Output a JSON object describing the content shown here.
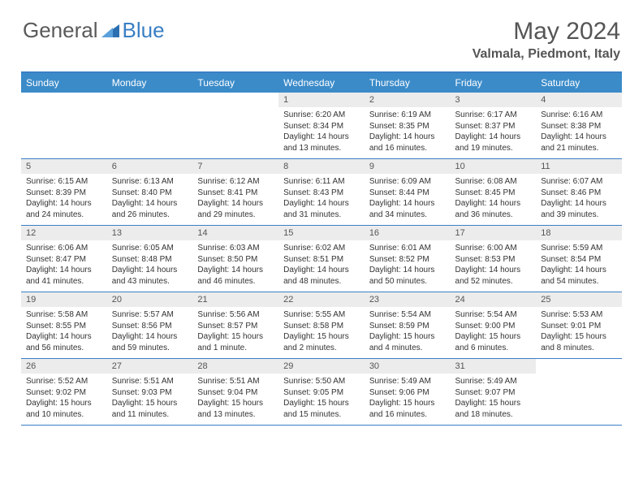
{
  "logo": {
    "text1": "General",
    "text2": "Blue"
  },
  "title": "May 2024",
  "location": "Valmala, Piedmont, Italy",
  "colors": {
    "header_bg": "#3b8bc9",
    "header_text": "#ffffff",
    "accent_rule": "#3a7fc4",
    "daynum_bg": "#ececec",
    "body_text": "#333333",
    "title_text": "#555555"
  },
  "typography": {
    "title_fontsize": 30,
    "location_fontsize": 16,
    "weekday_fontsize": 12,
    "daynum_fontsize": 11,
    "cell_fontsize": 10
  },
  "layout": {
    "columns": 7,
    "rows": 5,
    "leading_blanks": 3,
    "trailing_blanks": 1
  },
  "weekdays": [
    "Sunday",
    "Monday",
    "Tuesday",
    "Wednesday",
    "Thursday",
    "Friday",
    "Saturday"
  ],
  "days": [
    {
      "n": 1,
      "sunrise": "6:20 AM",
      "sunset": "8:34 PM",
      "daylight": "14 hours and 13 minutes."
    },
    {
      "n": 2,
      "sunrise": "6:19 AM",
      "sunset": "8:35 PM",
      "daylight": "14 hours and 16 minutes."
    },
    {
      "n": 3,
      "sunrise": "6:17 AM",
      "sunset": "8:37 PM",
      "daylight": "14 hours and 19 minutes."
    },
    {
      "n": 4,
      "sunrise": "6:16 AM",
      "sunset": "8:38 PM",
      "daylight": "14 hours and 21 minutes."
    },
    {
      "n": 5,
      "sunrise": "6:15 AM",
      "sunset": "8:39 PM",
      "daylight": "14 hours and 24 minutes."
    },
    {
      "n": 6,
      "sunrise": "6:13 AM",
      "sunset": "8:40 PM",
      "daylight": "14 hours and 26 minutes."
    },
    {
      "n": 7,
      "sunrise": "6:12 AM",
      "sunset": "8:41 PM",
      "daylight": "14 hours and 29 minutes."
    },
    {
      "n": 8,
      "sunrise": "6:11 AM",
      "sunset": "8:43 PM",
      "daylight": "14 hours and 31 minutes."
    },
    {
      "n": 9,
      "sunrise": "6:09 AM",
      "sunset": "8:44 PM",
      "daylight": "14 hours and 34 minutes."
    },
    {
      "n": 10,
      "sunrise": "6:08 AM",
      "sunset": "8:45 PM",
      "daylight": "14 hours and 36 minutes."
    },
    {
      "n": 11,
      "sunrise": "6:07 AM",
      "sunset": "8:46 PM",
      "daylight": "14 hours and 39 minutes."
    },
    {
      "n": 12,
      "sunrise": "6:06 AM",
      "sunset": "8:47 PM",
      "daylight": "14 hours and 41 minutes."
    },
    {
      "n": 13,
      "sunrise": "6:05 AM",
      "sunset": "8:48 PM",
      "daylight": "14 hours and 43 minutes."
    },
    {
      "n": 14,
      "sunrise": "6:03 AM",
      "sunset": "8:50 PM",
      "daylight": "14 hours and 46 minutes."
    },
    {
      "n": 15,
      "sunrise": "6:02 AM",
      "sunset": "8:51 PM",
      "daylight": "14 hours and 48 minutes."
    },
    {
      "n": 16,
      "sunrise": "6:01 AM",
      "sunset": "8:52 PM",
      "daylight": "14 hours and 50 minutes."
    },
    {
      "n": 17,
      "sunrise": "6:00 AM",
      "sunset": "8:53 PM",
      "daylight": "14 hours and 52 minutes."
    },
    {
      "n": 18,
      "sunrise": "5:59 AM",
      "sunset": "8:54 PM",
      "daylight": "14 hours and 54 minutes."
    },
    {
      "n": 19,
      "sunrise": "5:58 AM",
      "sunset": "8:55 PM",
      "daylight": "14 hours and 56 minutes."
    },
    {
      "n": 20,
      "sunrise": "5:57 AM",
      "sunset": "8:56 PM",
      "daylight": "14 hours and 59 minutes."
    },
    {
      "n": 21,
      "sunrise": "5:56 AM",
      "sunset": "8:57 PM",
      "daylight": "15 hours and 1 minute."
    },
    {
      "n": 22,
      "sunrise": "5:55 AM",
      "sunset": "8:58 PM",
      "daylight": "15 hours and 2 minutes."
    },
    {
      "n": 23,
      "sunrise": "5:54 AM",
      "sunset": "8:59 PM",
      "daylight": "15 hours and 4 minutes."
    },
    {
      "n": 24,
      "sunrise": "5:54 AM",
      "sunset": "9:00 PM",
      "daylight": "15 hours and 6 minutes."
    },
    {
      "n": 25,
      "sunrise": "5:53 AM",
      "sunset": "9:01 PM",
      "daylight": "15 hours and 8 minutes."
    },
    {
      "n": 26,
      "sunrise": "5:52 AM",
      "sunset": "9:02 PM",
      "daylight": "15 hours and 10 minutes."
    },
    {
      "n": 27,
      "sunrise": "5:51 AM",
      "sunset": "9:03 PM",
      "daylight": "15 hours and 11 minutes."
    },
    {
      "n": 28,
      "sunrise": "5:51 AM",
      "sunset": "9:04 PM",
      "daylight": "15 hours and 13 minutes."
    },
    {
      "n": 29,
      "sunrise": "5:50 AM",
      "sunset": "9:05 PM",
      "daylight": "15 hours and 15 minutes."
    },
    {
      "n": 30,
      "sunrise": "5:49 AM",
      "sunset": "9:06 PM",
      "daylight": "15 hours and 16 minutes."
    },
    {
      "n": 31,
      "sunrise": "5:49 AM",
      "sunset": "9:07 PM",
      "daylight": "15 hours and 18 minutes."
    }
  ],
  "labels": {
    "sunrise": "Sunrise:",
    "sunset": "Sunset:",
    "daylight": "Daylight:"
  }
}
